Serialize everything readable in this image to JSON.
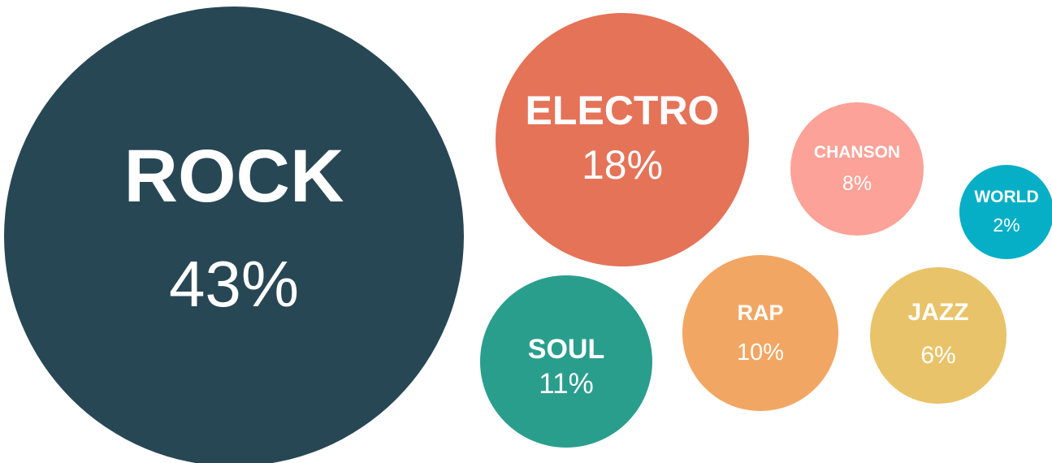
{
  "chart_data": {
    "type": "bubble",
    "title": "",
    "series": [
      {
        "label": "ROCK",
        "value": 43,
        "value_label": "43%",
        "color": "#284754"
      },
      {
        "label": "ELECTRO",
        "value": 18,
        "value_label": "18%",
        "color": "#E57358"
      },
      {
        "label": "CHANSON",
        "value": 8,
        "value_label": "8%",
        "color": "#FCA298"
      },
      {
        "label": "WORLD",
        "value": 2,
        "value_label": "2%",
        "color": "#06AFC6"
      },
      {
        "label": "SOUL",
        "value": 11,
        "value_label": "11%",
        "color": "#2A9E8D"
      },
      {
        "label": "RAP",
        "value": 10,
        "value_label": "10%",
        "color": "#F2A663"
      },
      {
        "label": "JAZZ",
        "value": 6,
        "value_label": "6%",
        "color": "#E8C369"
      }
    ]
  }
}
